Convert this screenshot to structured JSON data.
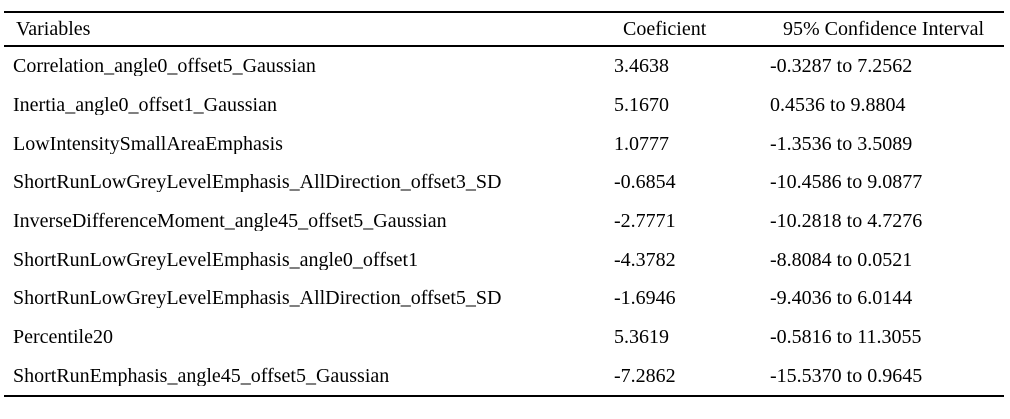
{
  "table": {
    "columns": [
      "Variables",
      "Coeficient",
      "95% Confidence Interval"
    ],
    "rows": [
      {
        "variable": "Correlation_angle0_offset5_Gaussian",
        "coefficient": "3.4638",
        "ci": "-0.3287 to 7.2562"
      },
      {
        "variable": "Inertia_angle0_offset1_Gaussian",
        "coefficient": "5.1670",
        "ci": "0.4536 to 9.8804"
      },
      {
        "variable": "LowIntensitySmallAreaEmphasis",
        "coefficient": "1.0777",
        "ci": "-1.3536 to 3.5089"
      },
      {
        "variable": "ShortRunLowGreyLevelEmphasis_AllDirection_offset3_SD",
        "coefficient": "-0.6854",
        "ci": "-10.4586 to 9.0877"
      },
      {
        "variable": "InverseDifferenceMoment_angle45_offset5_Gaussian",
        "coefficient": "-2.7771",
        "ci": "-10.2818 to 4.7276"
      },
      {
        "variable": "ShortRunLowGreyLevelEmphasis_angle0_offset1",
        "coefficient": "-4.3782",
        "ci": "-8.8084 to 0.0521"
      },
      {
        "variable": "ShortRunLowGreyLevelEmphasis_AllDirection_offset5_SD",
        "coefficient": "-1.6946",
        "ci": "-9.4036 to 6.0144"
      },
      {
        "variable": "Percentile20",
        "coefficient": "5.3619",
        "ci": "-0.5816 to 11.3055"
      },
      {
        "variable": "ShortRunEmphasis_angle45_offset5_Gaussian",
        "coefficient": "-7.2862",
        "ci": "-15.5370 to 0.9645"
      }
    ]
  },
  "colors": {
    "text": "#000000",
    "rule": "#000000",
    "background": "#ffffff"
  }
}
